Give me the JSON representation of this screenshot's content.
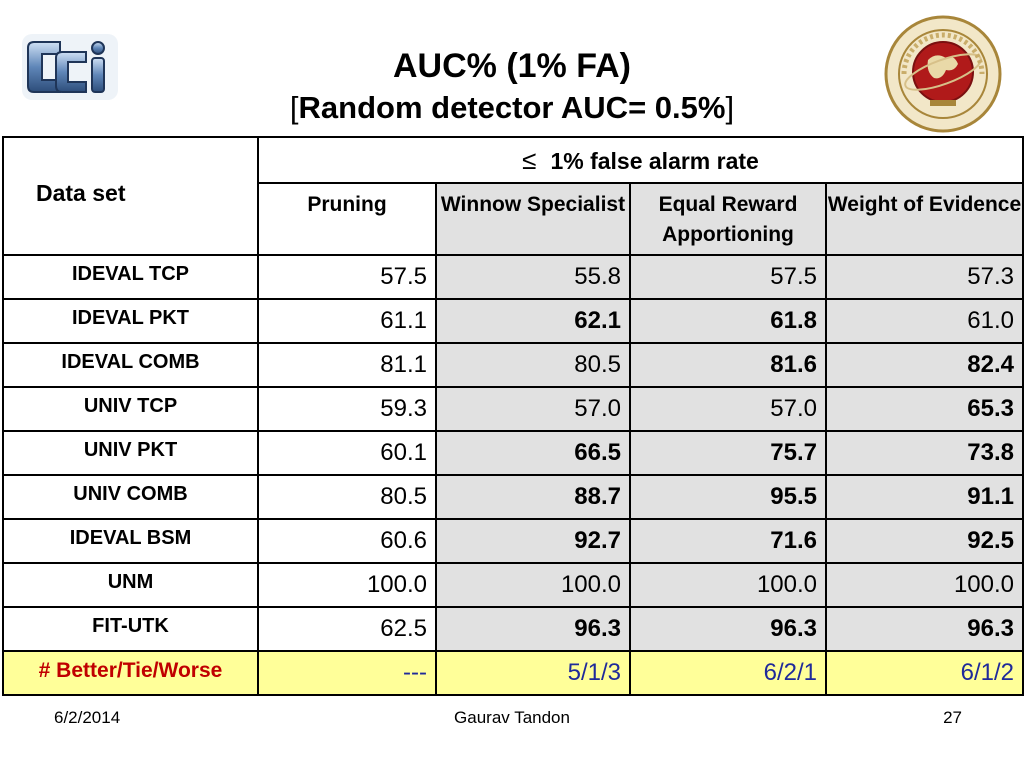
{
  "title": "AUC% (1% FA)",
  "subtitle": "Random detector AUC= 0.5%",
  "subtitle_open": "[",
  "subtitle_close": "]",
  "colors": {
    "gray_cell": "#e1e1e1",
    "summary_bg": "#ffff99",
    "summary_label": "#c00000",
    "summary_values": "#1f2a9a"
  },
  "logos": {
    "left": "cci-logo",
    "right": "florida-institute-of-technology-seal"
  },
  "table": {
    "dataset_header": "Data set",
    "group_symbol": "≤",
    "group_header": "1% false alarm rate",
    "columns": [
      {
        "label": "Pruning"
      },
      {
        "label": "Winnow Specialist"
      },
      {
        "label": "Equal Reward Apportioning"
      },
      {
        "label": "Weight of Evidence"
      }
    ],
    "rows": [
      {
        "name": "IDEVAL TCP",
        "values": [
          "57.5",
          "55.8",
          "57.5",
          "57.3"
        ],
        "bold": [
          false,
          false,
          false,
          false
        ]
      },
      {
        "name": "IDEVAL PKT",
        "values": [
          "61.1",
          "62.1",
          "61.8",
          "61.0"
        ],
        "bold": [
          false,
          true,
          true,
          false
        ]
      },
      {
        "name": "IDEVAL COMB",
        "values": [
          "81.1",
          "80.5",
          "81.6",
          "82.4"
        ],
        "bold": [
          false,
          false,
          true,
          true
        ]
      },
      {
        "name": "UNIV TCP",
        "values": [
          "59.3",
          "57.0",
          "57.0",
          "65.3"
        ],
        "bold": [
          false,
          false,
          false,
          true
        ]
      },
      {
        "name": "UNIV PKT",
        "values": [
          "60.1",
          "66.5",
          "75.7",
          "73.8"
        ],
        "bold": [
          false,
          true,
          true,
          true
        ]
      },
      {
        "name": "UNIV COMB",
        "values": [
          "80.5",
          "88.7",
          "95.5",
          "91.1"
        ],
        "bold": [
          false,
          true,
          true,
          true
        ]
      },
      {
        "name": "IDEVAL BSM",
        "values": [
          "60.6",
          "92.7",
          "71.6",
          "92.5"
        ],
        "bold": [
          false,
          true,
          true,
          true
        ]
      },
      {
        "name": "UNM",
        "values": [
          "100.0",
          "100.0",
          "100.0",
          "100.0"
        ],
        "bold": [
          false,
          false,
          false,
          false
        ]
      },
      {
        "name": "FIT-UTK",
        "values": [
          "62.5",
          "96.3",
          "96.3",
          "96.3"
        ],
        "bold": [
          false,
          true,
          true,
          true
        ]
      }
    ],
    "summary": {
      "name": "# Better/Tie/Worse",
      "values": [
        "---",
        "5/1/3",
        "6/2/1",
        "6/1/2"
      ]
    }
  },
  "footer": {
    "date": "6/2/2014",
    "author": "Gaurav Tandon",
    "page": "27"
  }
}
